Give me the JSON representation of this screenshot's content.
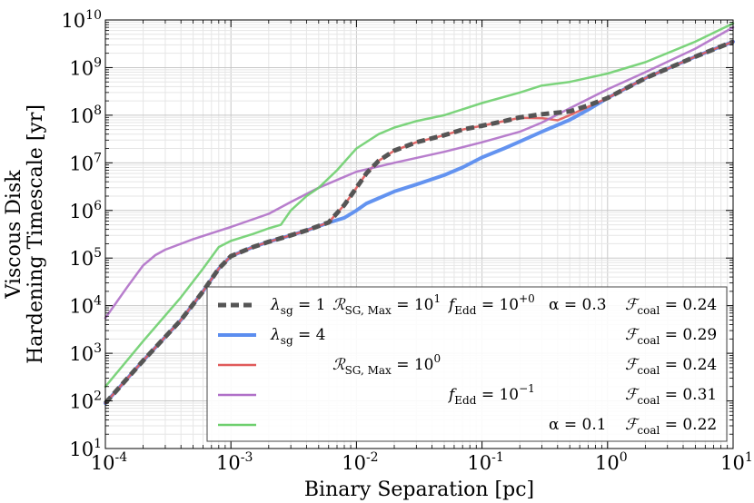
{
  "chart_data": {
    "type": "line",
    "xlabel": "Binary Separation [pc]",
    "ylabel_line1": "Viscous Disk",
    "ylabel_line2": "Hardening Timescale [yr]",
    "xscale": "log",
    "yscale": "log",
    "xlim": [
      0.0001,
      10
    ],
    "ylim": [
      10,
      10000000000
    ],
    "grid": true,
    "legend_placement": "lower-right",
    "xticks": [
      {
        "value": 0.0001,
        "base": "10",
        "exp": "-4"
      },
      {
        "value": 0.001,
        "base": "10",
        "exp": "-3"
      },
      {
        "value": 0.01,
        "base": "10",
        "exp": "-2"
      },
      {
        "value": 0.1,
        "base": "10",
        "exp": "-1"
      },
      {
        "value": 1,
        "base": "10",
        "exp": "0"
      },
      {
        "value": 10,
        "base": "10",
        "exp": "1"
      }
    ],
    "yticks": [
      {
        "value": 10,
        "base": "10",
        "exp": "1"
      },
      {
        "value": 100,
        "base": "10",
        "exp": "2"
      },
      {
        "value": 1000,
        "base": "10",
        "exp": "3"
      },
      {
        "value": 10000,
        "base": "10",
        "exp": "4"
      },
      {
        "value": 100000,
        "base": "10",
        "exp": "5"
      },
      {
        "value": 1000000,
        "base": "10",
        "exp": "6"
      },
      {
        "value": 10000000,
        "base": "10",
        "exp": "7"
      },
      {
        "value": 100000000,
        "base": "10",
        "exp": "8"
      },
      {
        "value": 1000000000,
        "base": "10",
        "exp": "9"
      },
      {
        "value": 10000000000,
        "base": "10",
        "exp": "10"
      }
    ],
    "series": [
      {
        "color": "#5b8def",
        "width": 4,
        "dash": "",
        "points": [
          [
            0.0001,
            90
          ],
          [
            0.0002,
            700
          ],
          [
            0.0004,
            5000
          ],
          [
            0.0006,
            20000
          ],
          [
            0.0008,
            60000
          ],
          [
            0.001,
            110000
          ],
          [
            0.0015,
            170000
          ],
          [
            0.002,
            220000
          ],
          [
            0.003,
            300000
          ],
          [
            0.004,
            380000
          ],
          [
            0.006,
            550000
          ],
          [
            0.008,
            700000
          ],
          [
            0.01,
            1000000
          ],
          [
            0.012,
            1400000
          ],
          [
            0.015,
            1800000
          ],
          [
            0.02,
            2500000
          ],
          [
            0.03,
            3500000
          ],
          [
            0.05,
            5500000
          ],
          [
            0.07,
            8000000
          ],
          [
            0.1,
            13000000
          ],
          [
            0.15,
            20000000
          ],
          [
            0.2,
            28000000
          ],
          [
            0.3,
            45000000
          ],
          [
            0.5,
            80000000
          ],
          [
            0.7,
            130000000
          ],
          [
            1,
            230000000
          ],
          [
            2,
            600000000
          ],
          [
            5,
            1700000000
          ],
          [
            10,
            3500000000
          ]
        ]
      },
      {
        "color": "#e05a5a",
        "width": 2.5,
        "dash": "",
        "points": [
          [
            0.0001,
            90
          ],
          [
            0.0002,
            700
          ],
          [
            0.0004,
            5000
          ],
          [
            0.0006,
            20000
          ],
          [
            0.0008,
            60000
          ],
          [
            0.001,
            110000
          ],
          [
            0.0015,
            170000
          ],
          [
            0.002,
            220000
          ],
          [
            0.003,
            300000
          ],
          [
            0.004,
            380000
          ],
          [
            0.006,
            560000
          ],
          [
            0.008,
            1300000
          ],
          [
            0.01,
            3000000
          ],
          [
            0.012,
            6000000
          ],
          [
            0.015,
            11000000
          ],
          [
            0.02,
            18000000
          ],
          [
            0.03,
            27000000
          ],
          [
            0.05,
            38000000
          ],
          [
            0.07,
            50000000
          ],
          [
            0.1,
            60000000
          ],
          [
            0.15,
            75000000
          ],
          [
            0.2,
            88000000
          ],
          [
            0.3,
            87000000
          ],
          [
            0.4,
            78000000
          ],
          [
            0.5,
            100000000
          ],
          [
            0.7,
            150000000
          ],
          [
            1,
            230000000
          ],
          [
            2,
            600000000
          ],
          [
            5,
            1700000000
          ],
          [
            10,
            3500000000
          ]
        ]
      },
      {
        "color": "#b070c8",
        "width": 2.5,
        "dash": "",
        "points": [
          [
            0.0001,
            5500
          ],
          [
            0.00015,
            25000
          ],
          [
            0.0002,
            70000
          ],
          [
            0.00025,
            115000
          ],
          [
            0.0003,
            150000
          ],
          [
            0.0005,
            250000
          ],
          [
            0.001,
            450000
          ],
          [
            0.002,
            850000
          ],
          [
            0.003,
            1500000
          ],
          [
            0.005,
            3000000
          ],
          [
            0.01,
            6500000
          ],
          [
            0.02,
            10000000
          ],
          [
            0.05,
            17000000
          ],
          [
            0.1,
            27000000
          ],
          [
            0.2,
            45000000
          ],
          [
            0.3,
            70000000
          ],
          [
            0.5,
            140000000
          ],
          [
            1,
            350000000
          ],
          [
            2,
            800000000
          ],
          [
            5,
            2500000000
          ],
          [
            10,
            7000000000
          ]
        ]
      },
      {
        "color": "#6ecf6e",
        "width": 2.5,
        "dash": "",
        "points": [
          [
            0.0001,
            200
          ],
          [
            0.0002,
            1800
          ],
          [
            0.0004,
            15000
          ],
          [
            0.0006,
            60000
          ],
          [
            0.0008,
            170000
          ],
          [
            0.001,
            230000
          ],
          [
            0.0015,
            320000
          ],
          [
            0.002,
            420000
          ],
          [
            0.0025,
            500000
          ],
          [
            0.003,
            1000000
          ],
          [
            0.004,
            2000000
          ],
          [
            0.005,
            3000000
          ],
          [
            0.007,
            7000000
          ],
          [
            0.01,
            20000000
          ],
          [
            0.015,
            40000000
          ],
          [
            0.02,
            55000000
          ],
          [
            0.03,
            75000000
          ],
          [
            0.05,
            100000000
          ],
          [
            0.1,
            180000000
          ],
          [
            0.2,
            300000000
          ],
          [
            0.3,
            420000000
          ],
          [
            0.5,
            500000000
          ],
          [
            1,
            750000000
          ],
          [
            2,
            1300000000
          ],
          [
            5,
            3500000000
          ],
          [
            10,
            8500000000
          ]
        ]
      },
      {
        "color": "#555555",
        "width": 5,
        "dash": "9,5",
        "points": [
          [
            0.0001,
            90
          ],
          [
            0.0002,
            700
          ],
          [
            0.0004,
            5000
          ],
          [
            0.0006,
            20000
          ],
          [
            0.0008,
            60000
          ],
          [
            0.001,
            110000
          ],
          [
            0.0015,
            170000
          ],
          [
            0.002,
            220000
          ],
          [
            0.003,
            300000
          ],
          [
            0.004,
            380000
          ],
          [
            0.006,
            560000
          ],
          [
            0.008,
            1300000
          ],
          [
            0.01,
            3000000
          ],
          [
            0.012,
            6000000
          ],
          [
            0.015,
            11000000
          ],
          [
            0.02,
            18000000
          ],
          [
            0.03,
            27000000
          ],
          [
            0.05,
            38000000
          ],
          [
            0.07,
            50000000
          ],
          [
            0.1,
            60000000
          ],
          [
            0.15,
            75000000
          ],
          [
            0.2,
            90000000
          ],
          [
            0.3,
            105000000
          ],
          [
            0.5,
            120000000
          ],
          [
            0.7,
            160000000
          ],
          [
            1,
            230000000
          ],
          [
            2,
            600000000
          ],
          [
            5,
            1700000000
          ],
          [
            10,
            3500000000
          ]
        ]
      }
    ],
    "legend": [
      {
        "color": "#555555",
        "width": 5,
        "dash": "9,5",
        "columns": [
          {
            "main": "λ",
            "sub": "sg",
            "rest": " = 1"
          },
          {
            "main": "ℛ",
            "sub": "SG, Max",
            "rest": " = 10",
            "sup": "1"
          },
          {
            "main": "f",
            "sub": "Edd",
            "rest": " = 10",
            "sup": "+0"
          },
          {
            "main": "α = 0.3"
          },
          {
            "main": "ℱ",
            "sub": "coal",
            "rest": " = 0.24"
          }
        ]
      },
      {
        "color": "#5b8def",
        "width": 4,
        "dash": "",
        "columns": [
          {
            "main": "λ",
            "sub": "sg",
            "rest": " = 4"
          },
          null,
          null,
          null,
          {
            "main": "ℱ",
            "sub": "coal",
            "rest": " = 0.29"
          }
        ]
      },
      {
        "color": "#e05a5a",
        "width": 2.5,
        "dash": "",
        "columns": [
          null,
          {
            "main": "ℛ",
            "sub": "SG, Max",
            "rest": " = 10",
            "sup": "0"
          },
          null,
          null,
          {
            "main": "ℱ",
            "sub": "coal",
            "rest": " = 0.24"
          }
        ]
      },
      {
        "color": "#b070c8",
        "width": 2.5,
        "dash": "",
        "columns": [
          null,
          null,
          {
            "main": "f",
            "sub": "Edd",
            "rest": " = 10",
            "sup": "−1"
          },
          null,
          {
            "main": "ℱ",
            "sub": "coal",
            "rest": " = 0.31"
          }
        ]
      },
      {
        "color": "#6ecf6e",
        "width": 2.5,
        "dash": "",
        "columns": [
          null,
          null,
          null,
          {
            "main": "α = 0.1"
          },
          {
            "main": "ℱ",
            "sub": "coal",
            "rest": " = 0.22"
          }
        ]
      }
    ]
  }
}
